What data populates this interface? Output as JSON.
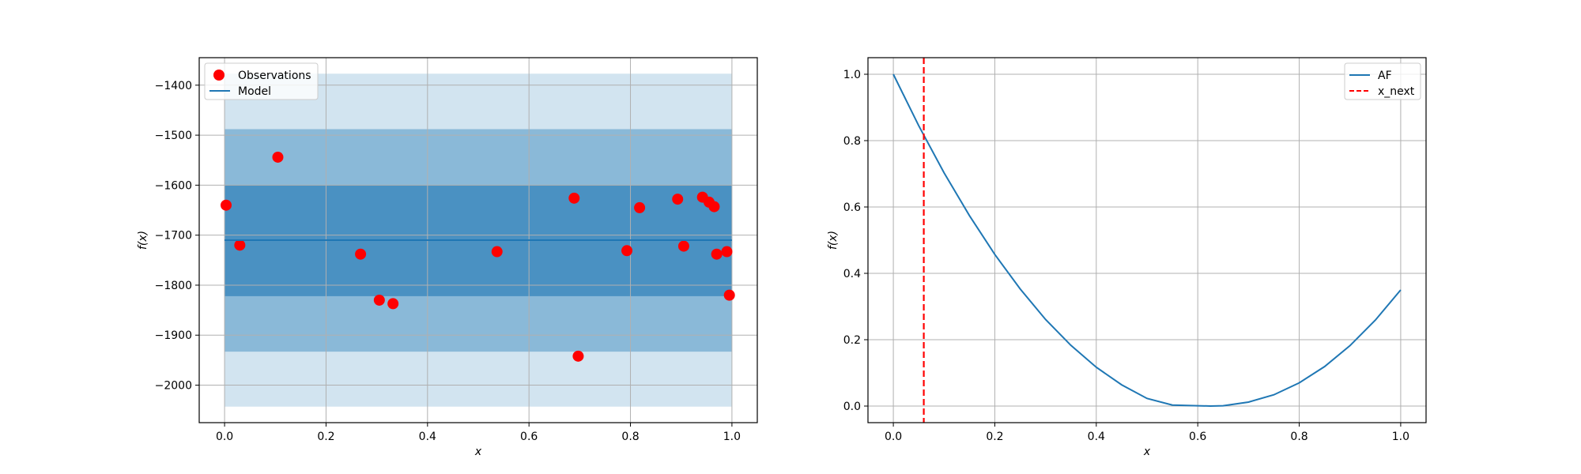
{
  "chart_data": [
    {
      "type": "scatter",
      "title": "",
      "xlabel": "x",
      "ylabel": "f(x)",
      "xlim": [
        -0.05,
        1.05
      ],
      "ylim": [
        -2075,
        -1345
      ],
      "xticks": [
        0.0,
        0.2,
        0.4,
        0.6,
        0.8,
        1.0
      ],
      "xtick_labels": [
        "0.0",
        "0.2",
        "0.4",
        "0.6",
        "0.8",
        "1.0"
      ],
      "yticks": [
        -1400,
        -1500,
        -1600,
        -1700,
        -1800,
        -1900,
        -2000
      ],
      "ytick_labels": [
        "−1400",
        "−1500",
        "−1600",
        "−1700",
        "−1800",
        "−1900",
        "−2000"
      ],
      "grid": true,
      "legend_position": "upper-left",
      "legend": [
        "Observations",
        "Model"
      ],
      "series": [
        {
          "name": "Observations",
          "kind": "scatter",
          "color": "#ff0000",
          "points": [
            {
              "x": 0.003,
              "y": -1640
            },
            {
              "x": 0.03,
              "y": -1720
            },
            {
              "x": 0.105,
              "y": -1544
            },
            {
              "x": 0.268,
              "y": -1738
            },
            {
              "x": 0.305,
              "y": -1830
            },
            {
              "x": 0.332,
              "y": -1837
            },
            {
              "x": 0.537,
              "y": -1733
            },
            {
              "x": 0.689,
              "y": -1626
            },
            {
              "x": 0.697,
              "y": -1942
            },
            {
              "x": 0.793,
              "y": -1731
            },
            {
              "x": 0.818,
              "y": -1645
            },
            {
              "x": 0.893,
              "y": -1628
            },
            {
              "x": 0.905,
              "y": -1722
            },
            {
              "x": 0.942,
              "y": -1624
            },
            {
              "x": 0.955,
              "y": -1634
            },
            {
              "x": 0.965,
              "y": -1643
            },
            {
              "x": 0.97,
              "y": -1738
            },
            {
              "x": 0.99,
              "y": -1733
            },
            {
              "x": 0.995,
              "y": -1820
            }
          ]
        },
        {
          "name": "Model",
          "kind": "line",
          "color": "#1f77b4",
          "x": [
            0.0,
            1.0
          ],
          "y": [
            -1710,
            -1710
          ]
        }
      ],
      "confidence_bands": [
        {
          "lower": -2043,
          "upper": -1377,
          "color": "#1f77b4",
          "opacity": 0.2
        },
        {
          "lower": -1933,
          "upper": -1488,
          "color": "#1f77b4",
          "opacity": 0.4
        },
        {
          "lower": -1822,
          "upper": -1600,
          "color": "#1f77b4",
          "opacity": 0.6
        }
      ],
      "band_x": [
        0.0,
        1.0
      ]
    },
    {
      "type": "line",
      "title": "",
      "xlabel": "x",
      "ylabel": "f(x)",
      "xlim": [
        -0.05,
        1.05
      ],
      "ylim": [
        -0.05,
        1.05
      ],
      "xticks": [
        0.0,
        0.2,
        0.4,
        0.6,
        0.8,
        1.0
      ],
      "xtick_labels": [
        "0.0",
        "0.2",
        "0.4",
        "0.6",
        "0.8",
        "1.0"
      ],
      "yticks": [
        0.0,
        0.2,
        0.4,
        0.6,
        0.8,
        1.0
      ],
      "ytick_labels": [
        "0.0",
        "0.2",
        "0.4",
        "0.6",
        "0.8",
        "1.0"
      ],
      "grid": true,
      "legend_position": "upper-right",
      "legend": [
        "AF",
        "x_next"
      ],
      "series": [
        {
          "name": "AF",
          "kind": "line",
          "color": "#1f77b4",
          "x": [
            0.0,
            0.05,
            0.1,
            0.15,
            0.2,
            0.25,
            0.3,
            0.35,
            0.4,
            0.45,
            0.5,
            0.55,
            0.6,
            0.625,
            0.65,
            0.7,
            0.75,
            0.8,
            0.85,
            0.9,
            0.95,
            1.0
          ],
          "y": [
            1.0,
            0.845,
            0.703,
            0.574,
            0.457,
            0.353,
            0.261,
            0.183,
            0.117,
            0.064,
            0.023,
            0.003,
            0.001,
            0.0,
            0.001,
            0.012,
            0.034,
            0.07,
            0.119,
            0.182,
            0.259,
            0.35
          ]
        },
        {
          "name": "x_next",
          "kind": "vline",
          "color": "#ff0000",
          "x": 0.06
        }
      ]
    }
  ]
}
